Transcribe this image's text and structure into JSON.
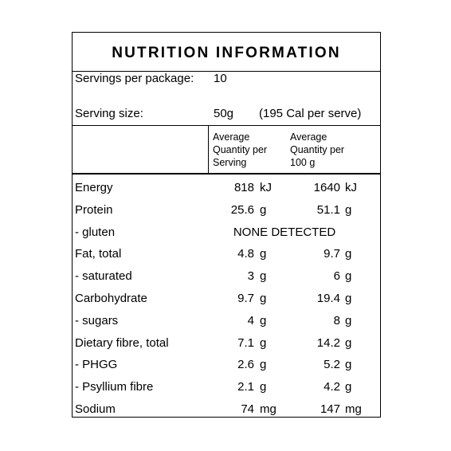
{
  "title": "NUTRITION INFORMATION",
  "servings": {
    "label": "Servings per package:",
    "value": "10"
  },
  "serving_size": {
    "label": "Serving size:",
    "value": "50g",
    "note": "(195 Cal per serve)"
  },
  "headers": {
    "per_serving": "Average Quantity per Serving",
    "per_100g": "Average Quantity per 100 g"
  },
  "nutrients": [
    {
      "name": "Energy",
      "serv": "818",
      "serv_unit": "kJ",
      "per100": "1640",
      "per100_unit": "kJ"
    },
    {
      "name": "Protein",
      "serv": "25.6",
      "serv_unit": "g",
      "per100": "51.1",
      "per100_unit": "g"
    },
    {
      "name": "- gluten",
      "combined": "NONE DETECTED"
    },
    {
      "name": "Fat, total",
      "serv": "4.8",
      "serv_unit": "g",
      "per100": "9.7",
      "per100_unit": "g"
    },
    {
      "name": "- saturated",
      "serv": "3",
      "serv_unit": "g",
      "per100": "6",
      "per100_unit": "g"
    },
    {
      "name": "Carbohydrate",
      "serv": "9.7",
      "serv_unit": "g",
      "per100": "19.4",
      "per100_unit": "g"
    },
    {
      "name": "- sugars",
      "serv": "4",
      "serv_unit": "g",
      "per100": "8",
      "per100_unit": "g"
    },
    {
      "name": "Dietary fibre, total",
      "serv": "7.1",
      "serv_unit": "g",
      "per100": "14.2",
      "per100_unit": "g"
    },
    {
      "name": "- PHGG",
      "serv": "2.6",
      "serv_unit": "g",
      "per100": "5.2",
      "per100_unit": "g"
    },
    {
      "name": "- Psyllium fibre",
      "serv": "2.1",
      "serv_unit": "g",
      "per100": "4.2",
      "per100_unit": "g"
    },
    {
      "name": "Sodium",
      "serv": "74",
      "serv_unit": "mg",
      "per100": "147",
      "per100_unit": "mg"
    }
  ]
}
